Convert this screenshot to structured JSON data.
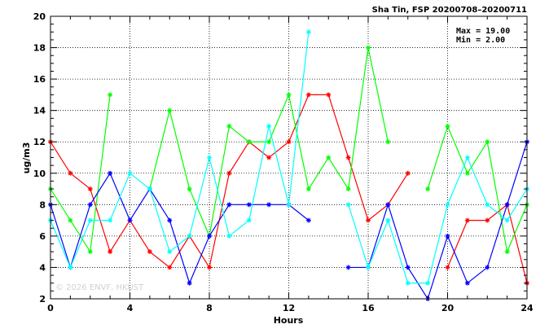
{
  "chart_data": {
    "type": "line",
    "title": "Sha Tin, FSP 20200708–20200711",
    "xlabel": "Hours",
    "ylabel": "ug/m3",
    "xlim": [
      0,
      24
    ],
    "ylim": [
      2,
      20
    ],
    "xticks": [
      0,
      4,
      8,
      12,
      16,
      20,
      24
    ],
    "yticks": [
      2,
      4,
      6,
      8,
      10,
      12,
      14,
      16,
      18,
      20
    ],
    "grid": true,
    "max_label": "Max = 19.00",
    "min_label": "Min =  2.00",
    "watermark": "© 2026  ENVF, HKUST",
    "x": [
      0,
      1,
      2,
      3,
      4,
      5,
      6,
      7,
      8,
      9,
      10,
      11,
      12,
      13,
      14,
      15,
      16,
      17,
      18,
      19,
      20,
      21,
      22,
      23,
      24
    ],
    "series": [
      {
        "color": "#ff0000",
        "values": [
          12,
          10,
          9,
          5,
          7,
          5,
          4,
          6,
          4,
          10,
          12,
          11,
          12,
          15,
          15,
          11,
          7,
          8,
          10,
          null,
          4,
          7,
          7,
          8,
          3
        ]
      },
      {
        "color": "#00ff00",
        "values": [
          9,
          7,
          5,
          15,
          null,
          9,
          14,
          9,
          6,
          13,
          12,
          12,
          15,
          9,
          11,
          9,
          18,
          12,
          null,
          9,
          13,
          10,
          12,
          5,
          8
        ]
      },
      {
        "color": "#0000ff",
        "values": [
          8,
          4,
          8,
          10,
          7,
          9,
          7,
          3,
          6,
          8,
          8,
          8,
          8,
          7,
          null,
          4,
          4,
          8,
          4,
          2,
          6,
          3,
          4,
          8,
          12
        ]
      },
      {
        "color": "#00ffff",
        "values": [
          7,
          4,
          7,
          7,
          10,
          9,
          5,
          6,
          11,
          6,
          7,
          13,
          8,
          19,
          null,
          8,
          4,
          7,
          3,
          3,
          8,
          11,
          8,
          7,
          9
        ]
      }
    ]
  }
}
